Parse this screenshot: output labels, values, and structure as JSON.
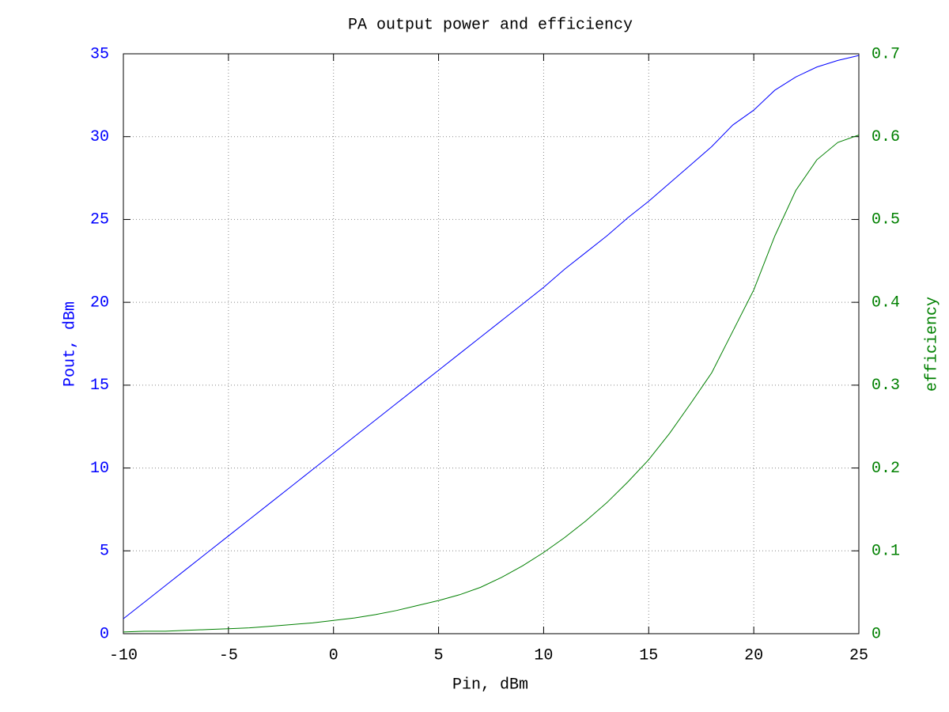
{
  "chart_data": {
    "type": "line",
    "title": "PA output power and efficiency",
    "xlabel": "Pin, dBm",
    "ylabel": "Pout, dBm",
    "y2label": "efficiency",
    "x": [
      -10,
      -9,
      -8,
      -7,
      -6,
      -5,
      -4,
      -3,
      -2,
      -1,
      0,
      1,
      2,
      3,
      4,
      5,
      6,
      7,
      8,
      9,
      10,
      11,
      12,
      13,
      14,
      15,
      16,
      17,
      18,
      19,
      20,
      21,
      22,
      23,
      24,
      25
    ],
    "series": [
      {
        "name": "Pout",
        "color": "#0000ff",
        "values": [
          0.9,
          1.9,
          2.9,
          3.9,
          4.9,
          5.9,
          6.9,
          7.9,
          8.9,
          9.9,
          10.9,
          11.9,
          12.9,
          13.9,
          14.9,
          15.9,
          16.9,
          17.9,
          18.9,
          19.9,
          20.9,
          22.0,
          23.0,
          24.0,
          25.1,
          26.1,
          27.2,
          28.3,
          29.4,
          30.7,
          31.6,
          32.8,
          33.6,
          34.2,
          34.6,
          34.9
        ]
      },
      {
        "name": "efficiency",
        "color": "#008000",
        "axis": "y2",
        "values": [
          0.002,
          0.003,
          0.003,
          0.004,
          0.005,
          0.006,
          0.007,
          0.009,
          0.011,
          0.013,
          0.016,
          0.019,
          0.023,
          0.028,
          0.034,
          0.04,
          0.047,
          0.056,
          0.068,
          0.082,
          0.098,
          0.116,
          0.136,
          0.158,
          0.183,
          0.21,
          0.242,
          0.278,
          0.315,
          0.365,
          0.415,
          0.48,
          0.535,
          0.572,
          0.593,
          0.602
        ]
      }
    ],
    "xlim": [
      -10,
      25
    ],
    "xticks": [
      -10,
      -5,
      0,
      5,
      10,
      15,
      20,
      25
    ],
    "ylim": [
      0,
      35
    ],
    "yticks": [
      0,
      5,
      10,
      15,
      20,
      25,
      30,
      35
    ],
    "y2lim": [
      0,
      0.7
    ],
    "y2ticks": [
      0,
      0.1,
      0.2,
      0.3,
      0.4,
      0.5,
      0.6,
      0.7
    ],
    "grid": true
  }
}
